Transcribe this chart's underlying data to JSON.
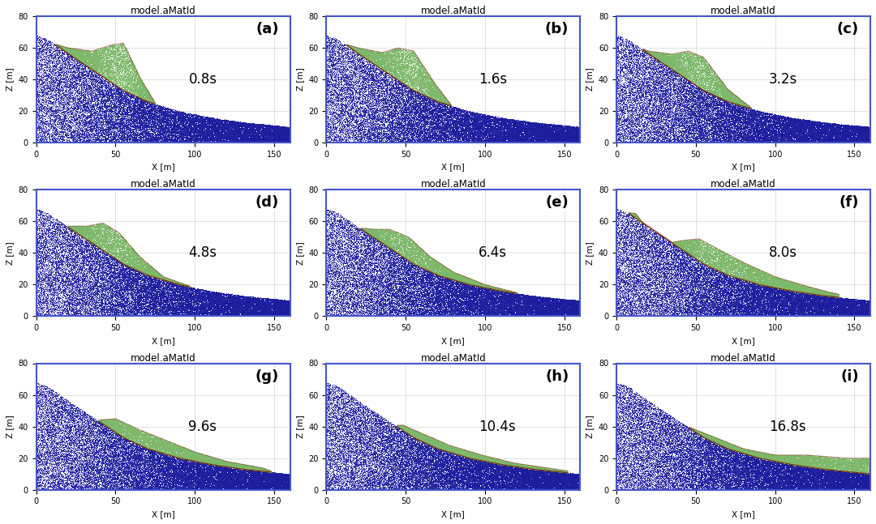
{
  "panels": [
    {
      "label": "a",
      "time": "0.8s"
    },
    {
      "label": "b",
      "time": "1.6s"
    },
    {
      "label": "c",
      "time": "3.2s"
    },
    {
      "label": "d",
      "time": "4.8s"
    },
    {
      "label": "e",
      "time": "6.4s"
    },
    {
      "label": "f",
      "time": "8.0s"
    },
    {
      "label": "g",
      "time": "9.6s"
    },
    {
      "label": "h",
      "time": "10.4s"
    },
    {
      "label": "i",
      "time": "16.8s"
    }
  ],
  "title": "model.aMatId",
  "xlabel": "X [m]",
  "ylabel": "Z [m]",
  "xlim": [
    0,
    160
  ],
  "ylim": [
    0,
    80
  ],
  "xticks": [
    0,
    50,
    100,
    150
  ],
  "yticks": [
    0,
    20,
    40,
    60,
    80
  ],
  "blue_color": "#1c1c9e",
  "green_color": "#7db86a",
  "red_color": "#7a1e00",
  "border_color": "#4455cc",
  "bg_color": "#ffffff",
  "seed": 42,
  "n_blue": 35000,
  "n_green": 18000,
  "terrain": {
    "x": [
      0,
      3,
      8,
      15,
      25,
      40,
      55,
      70,
      90,
      110,
      130,
      150,
      160
    ],
    "z": [
      68,
      67,
      65,
      60,
      53,
      43,
      33,
      26,
      20,
      16,
      13,
      11,
      10
    ]
  },
  "green_profiles": {
    "a": {
      "top_x": [
        3,
        10,
        20,
        35,
        48,
        55,
        65,
        75,
        90,
        100,
        105
      ],
      "top_z": [
        65,
        63,
        60,
        58,
        62,
        63,
        42,
        25,
        20,
        18,
        16
      ]
    },
    "b": {
      "top_x": [
        3,
        10,
        20,
        35,
        45,
        55,
        68,
        80,
        95,
        108
      ],
      "top_z": [
        65,
        63,
        60,
        57,
        60,
        58,
        38,
        22,
        18,
        15
      ]
    },
    "c": {
      "top_x": [
        3,
        10,
        20,
        35,
        45,
        55,
        70,
        85,
        100,
        115
      ],
      "top_z": [
        65,
        62,
        58,
        56,
        58,
        54,
        34,
        22,
        17,
        14
      ]
    },
    "d": {
      "top_x": [
        3,
        10,
        20,
        32,
        42,
        52,
        65,
        80,
        100,
        120,
        125
      ],
      "top_z": [
        65,
        61,
        57,
        57,
        59,
        53,
        38,
        25,
        18,
        14,
        12
      ]
    },
    "e": {
      "top_x": [
        3,
        10,
        20,
        30,
        40,
        52,
        65,
        80,
        100,
        120,
        130
      ],
      "top_z": [
        64,
        60,
        56,
        55,
        55,
        50,
        38,
        28,
        20,
        15,
        13
      ]
    },
    "f": {
      "top_x": [
        5,
        12,
        20,
        30,
        42,
        52,
        65,
        80,
        100,
        120,
        135,
        140
      ],
      "top_z": [
        66,
        65,
        55,
        46,
        48,
        49,
        42,
        34,
        25,
        19,
        15,
        14
      ]
    },
    "g": {
      "top_x": [
        5,
        10,
        18,
        28,
        38,
        50,
        65,
        80,
        100,
        120,
        142,
        148
      ],
      "top_z": [
        66,
        64,
        52,
        42,
        44,
        45,
        38,
        32,
        24,
        18,
        14,
        12
      ]
    },
    "h": {
      "top_x": [
        5,
        10,
        16,
        25,
        35,
        48,
        62,
        78,
        98,
        118,
        145,
        152
      ],
      "top_z": [
        65,
        62,
        49,
        38,
        40,
        41,
        35,
        28,
        22,
        17,
        13,
        12
      ]
    },
    "i": {
      "top_x": [
        5,
        10,
        15,
        22,
        32,
        45,
        60,
        80,
        100,
        120,
        145,
        160
      ],
      "top_z": [
        66,
        64,
        50,
        40,
        42,
        40,
        34,
        26,
        22,
        22,
        20,
        20
      ]
    }
  }
}
